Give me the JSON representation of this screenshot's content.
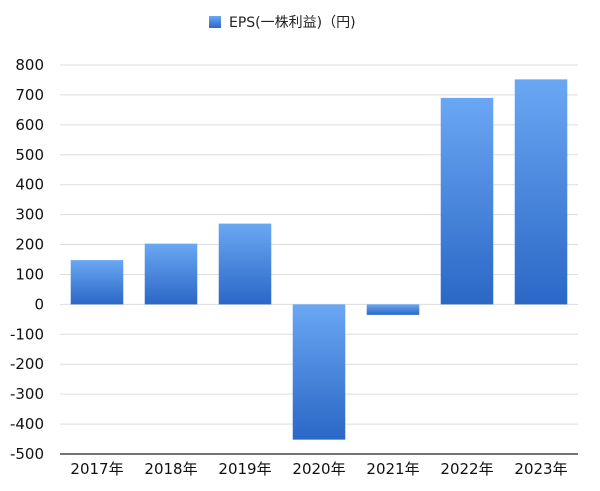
{
  "chart_data": {
    "type": "bar",
    "legend": {
      "label": "EPS(一株利益)（円)",
      "placement": "top-center"
    },
    "categories": [
      "2017年",
      "2018年",
      "2019年",
      "2020年",
      "2021年",
      "2022年",
      "2023年"
    ],
    "series": [
      {
        "name": "EPS(一株利益)（円)",
        "values": [
          148,
          203,
          270,
          -452,
          -35,
          690,
          752
        ]
      }
    ],
    "ylim": [
      -500,
      800
    ],
    "yticks": [
      800,
      700,
      600,
      500,
      400,
      300,
      200,
      100,
      0,
      -100,
      -200,
      -300,
      -400,
      -500
    ],
    "grid": true,
    "colors": {
      "bar_top": "#6aa7f3",
      "bar_bottom": "#2b67c6",
      "grid": "#dddddd",
      "axis": "#222222"
    }
  }
}
